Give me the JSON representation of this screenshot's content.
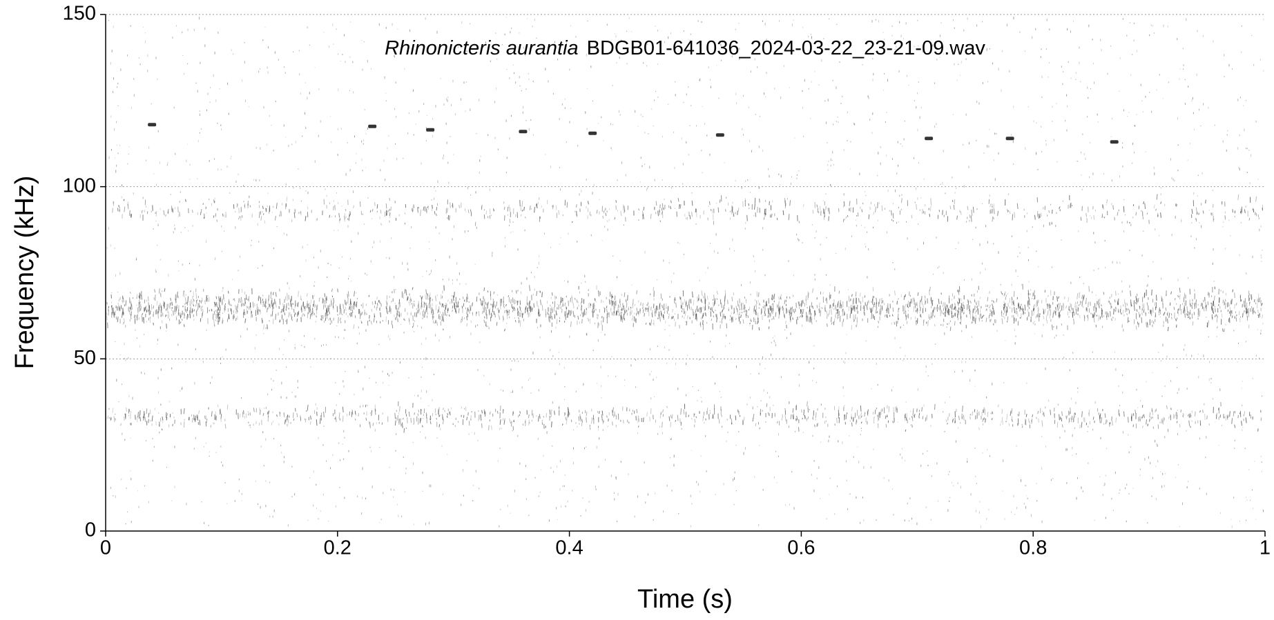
{
  "chart_data": {
    "type": "spectrogram",
    "title_species": "Rhinonicteris aurantia",
    "title_file": "BDGB01-641036_2024-03-22_23-21-09.wav",
    "x_label": "Time (s)",
    "y_label": "Frequency (kHz)",
    "xlim": [
      0,
      1
    ],
    "xticks": [
      0,
      0.2,
      0.4,
      0.6,
      0.8,
      1
    ],
    "ylim": [
      0,
      150
    ],
    "yticks": [
      0,
      50,
      100,
      150
    ],
    "grid": true,
    "calls": {
      "x": [
        0.04,
        0.23,
        0.28,
        0.36,
        0.42,
        0.53,
        0.71,
        0.78,
        0.87
      ],
      "y": [
        118,
        117.5,
        116.5,
        116,
        115.5,
        115,
        114,
        114,
        113
      ]
    },
    "noise_bands": [
      [
        57,
        71
      ],
      [
        28,
        37
      ],
      [
        88,
        97
      ]
    ],
    "color": "#333333"
  }
}
